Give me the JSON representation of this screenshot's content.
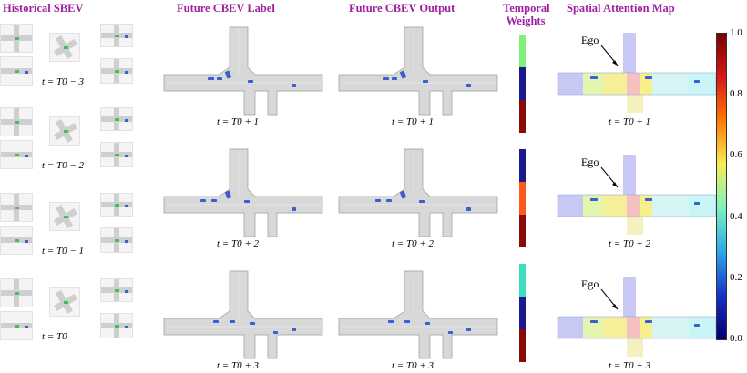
{
  "headers": {
    "historical": "Historical SBEV",
    "future_label": "Future CBEV Label",
    "future_output": "Future CBEV Output",
    "temporal_line1": "Temporal",
    "temporal_line2": "Weights",
    "spatial": "Spatial Attention Map"
  },
  "history_labels": [
    "t = T0 − 3",
    "t = T0 − 2",
    "t = T0 − 1",
    "t = T0"
  ],
  "future_labels": [
    "t = T0 + 1",
    "t = T0 + 2",
    "t = T0 + 3"
  ],
  "ego_label": "Ego",
  "temporal_weights": [
    [
      "#7ff07a",
      "#1a1a8c",
      "#8a0a0a"
    ],
    [
      "#1a1a8c",
      "#ff5a1e",
      "#8a0a0a"
    ],
    [
      "#3ce0c0",
      "#1a1a8c",
      "#8a0a0a"
    ]
  ],
  "colorbar": {
    "ticks": [
      "1.0",
      "0.8",
      "0.6",
      "0.4",
      "0.2",
      "0.0"
    ],
    "colors": [
      "#7a0000",
      "#d81818",
      "#ff7a00",
      "#f5ef55",
      "#7cf0c0",
      "#2aa8e8",
      "#1830c8",
      "#000070"
    ]
  },
  "colors": {
    "header": "#a020a0",
    "road": "#d8d8d8",
    "road_edge": "#9a9a9a",
    "vehicle": "#3a5fd0",
    "ego_vehicle": "#39c25a"
  }
}
